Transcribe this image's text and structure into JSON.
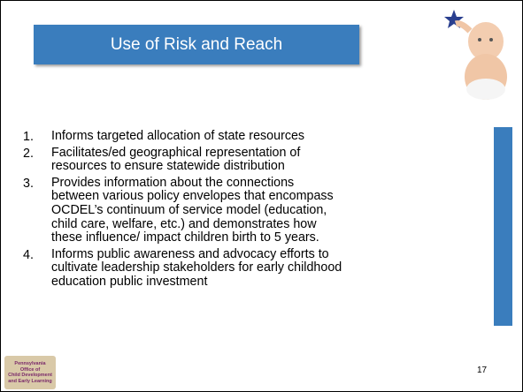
{
  "slide": {
    "title": "Use of Risk and Reach",
    "items": [
      {
        "number": "1.",
        "lines": [
          "Informs targeted allocation of state resources"
        ]
      },
      {
        "number": "2.",
        "lines": [
          "Facilitates/ed geographical representation of",
          "resources to ensure statewide distribution"
        ]
      },
      {
        "number": "3.",
        "lines": [
          "Provides information about the connections",
          "between various policy envelopes that encompass",
          "OCDEL’s continuum of service model (education,",
          "child care, welfare, etc.) and demonstrates how",
          "these influence/ impact children birth to 5 years."
        ]
      },
      {
        "number": "4.",
        "lines": [
          "Informs public awareness and advocacy efforts to",
          "cultivate leadership stakeholders for early childhood",
          "education public investment"
        ]
      }
    ],
    "logo": [
      "Pennsylvania",
      "Office of",
      "Child Development",
      "and Early Learning"
    ],
    "page_number": "17"
  }
}
